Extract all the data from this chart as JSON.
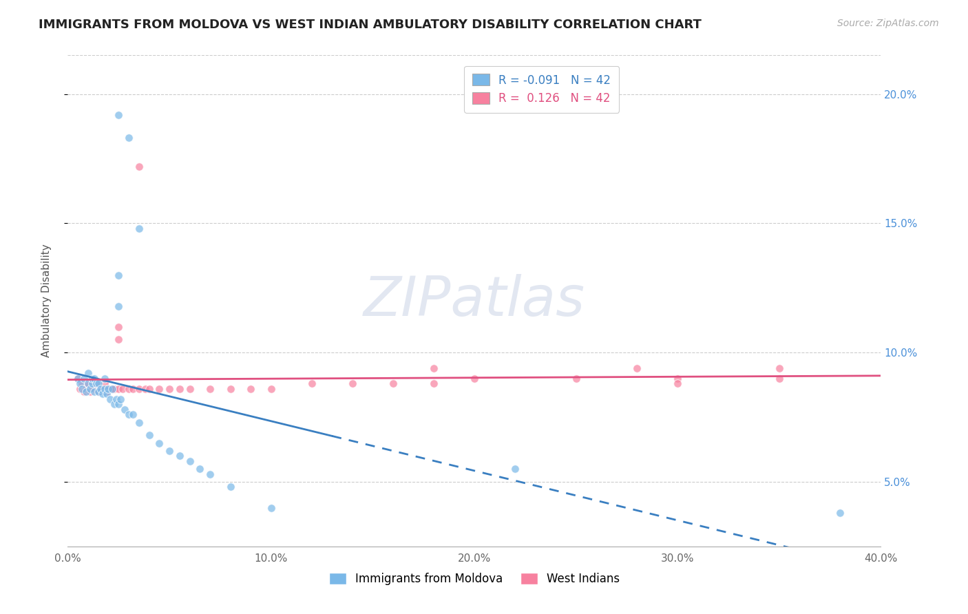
{
  "title": "IMMIGRANTS FROM MOLDOVA VS WEST INDIAN AMBULATORY DISABILITY CORRELATION CHART",
  "source": "Source: ZipAtlas.com",
  "xlabel_legend_left": "Immigrants from Moldova",
  "xlabel_legend_right": "West Indians",
  "ylabel": "Ambulatory Disability",
  "r_moldova": -0.091,
  "r_west_indian": 0.126,
  "n_moldova": 42,
  "n_west_indian": 42,
  "xlim": [
    0.0,
    0.4
  ],
  "ylim": [
    0.025,
    0.215
  ],
  "yticks": [
    0.05,
    0.1,
    0.15,
    0.2
  ],
  "ytick_labels": [
    "5.0%",
    "10.0%",
    "15.0%",
    "20.0%"
  ],
  "xticks": [
    0.0,
    0.1,
    0.2,
    0.3,
    0.4
  ],
  "xtick_labels": [
    "0.0%",
    "10.0%",
    "20.0%",
    "30.0%",
    "40.0%"
  ],
  "color_moldova": "#7ab8e8",
  "color_west_indian": "#f7819f",
  "background_color": "#ffffff",
  "grid_color": "#cccccc",
  "watermark": "ZIPatlas",
  "moldova_x": [
    0.005,
    0.006,
    0.007,
    0.008,
    0.009,
    0.01,
    0.01,
    0.011,
    0.012,
    0.012,
    0.013,
    0.013,
    0.014,
    0.015,
    0.015,
    0.016,
    0.017,
    0.018,
    0.018,
    0.019,
    0.02,
    0.021,
    0.022,
    0.023,
    0.024,
    0.025,
    0.026,
    0.028,
    0.03,
    0.032,
    0.035,
    0.04,
    0.045,
    0.05,
    0.055,
    0.06,
    0.065,
    0.07,
    0.08,
    0.1,
    0.22,
    0.38
  ],
  "moldova_y": [
    0.09,
    0.088,
    0.086,
    0.09,
    0.085,
    0.088,
    0.092,
    0.086,
    0.088,
    0.09,
    0.085,
    0.09,
    0.088,
    0.088,
    0.085,
    0.086,
    0.084,
    0.086,
    0.09,
    0.084,
    0.086,
    0.082,
    0.086,
    0.08,
    0.082,
    0.08,
    0.082,
    0.078,
    0.076,
    0.076,
    0.073,
    0.068,
    0.065,
    0.062,
    0.06,
    0.058,
    0.055,
    0.053,
    0.048,
    0.04,
    0.055,
    0.038
  ],
  "moldova_high_y": [
    [
      0.025,
      0.192
    ],
    [
      0.03,
      0.183
    ],
    [
      0.035,
      0.148
    ],
    [
      0.025,
      0.13
    ],
    [
      0.025,
      0.118
    ]
  ],
  "west_x": [
    0.005,
    0.006,
    0.007,
    0.008,
    0.009,
    0.01,
    0.011,
    0.012,
    0.013,
    0.014,
    0.015,
    0.016,
    0.017,
    0.018,
    0.019,
    0.02,
    0.021,
    0.022,
    0.023,
    0.025,
    0.027,
    0.03,
    0.032,
    0.035,
    0.038,
    0.04,
    0.045,
    0.05,
    0.055,
    0.06,
    0.07,
    0.08,
    0.09,
    0.1,
    0.12,
    0.14,
    0.16,
    0.18,
    0.2,
    0.25,
    0.3,
    0.35
  ],
  "west_y": [
    0.09,
    0.086,
    0.088,
    0.085,
    0.086,
    0.088,
    0.085,
    0.086,
    0.086,
    0.088,
    0.085,
    0.086,
    0.086,
    0.088,
    0.085,
    0.086,
    0.086,
    0.086,
    0.086,
    0.086,
    0.086,
    0.086,
    0.086,
    0.086,
    0.086,
    0.086,
    0.086,
    0.086,
    0.086,
    0.086,
    0.086,
    0.086,
    0.086,
    0.086,
    0.088,
    0.088,
    0.088,
    0.088,
    0.09,
    0.09,
    0.09,
    0.09
  ],
  "west_high_y": [
    [
      0.035,
      0.172
    ],
    [
      0.025,
      0.11
    ],
    [
      0.025,
      0.105
    ],
    [
      0.28,
      0.094
    ],
    [
      0.3,
      0.088
    ],
    [
      0.18,
      0.094
    ],
    [
      0.35,
      0.094
    ]
  ]
}
